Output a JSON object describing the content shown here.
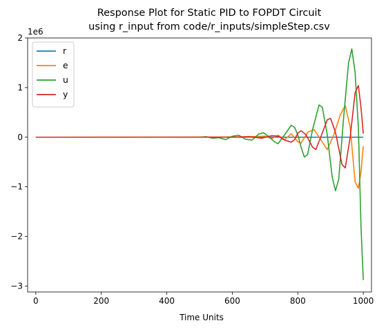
{
  "chart_data": {
    "type": "line",
    "title": "Response Plot for Static PID to FOPDT Circuit",
    "subtitle": "using r_input from code/r_inputs/simpleStep.csv",
    "xlabel": "Time Units",
    "ylabel": "",
    "y_scale_label": "1e6",
    "xlim": [
      -25,
      1025
    ],
    "ylim": [
      -3.12,
      2.0
    ],
    "xticks": [
      0,
      200,
      400,
      600,
      800,
      1000
    ],
    "xtick_labels": [
      "0",
      "200",
      "400",
      "600",
      "800",
      "1000"
    ],
    "yticks": [
      2,
      1,
      0,
      -1,
      -2,
      -3
    ],
    "ytick_labels": [
      "2",
      "1",
      "0",
      "−1",
      "−2",
      "−3"
    ],
    "grid": false,
    "legend_position": "top-left",
    "series": [
      {
        "name": "r",
        "color": "#1f77b4",
        "points": [
          [
            0,
            0
          ],
          [
            1000,
            0
          ]
        ]
      },
      {
        "name": "e",
        "color": "#ff7f0e",
        "points": [
          [
            0,
            0
          ],
          [
            600,
            0.005
          ],
          [
            640,
            0.01
          ],
          [
            680,
            0.015
          ],
          [
            700,
            0.02
          ],
          [
            720,
            -0.03
          ],
          [
            740,
            0.04
          ],
          [
            760,
            -0.05
          ],
          [
            780,
            0.07
          ],
          [
            800,
            -0.09
          ],
          [
            810,
            -0.12
          ],
          [
            830,
            0.1
          ],
          [
            850,
            0.15
          ],
          [
            870,
            -0.05
          ],
          [
            890,
            -0.25
          ],
          [
            910,
            0.05
          ],
          [
            930,
            0.45
          ],
          [
            945,
            0.64
          ],
          [
            960,
            0.2
          ],
          [
            975,
            -0.9
          ],
          [
            985,
            -1.03
          ],
          [
            993,
            -0.7
          ],
          [
            1000,
            -0.18
          ]
        ]
      },
      {
        "name": "u",
        "color": "#2ca02c",
        "points": [
          [
            0,
            0
          ],
          [
            500,
            0
          ],
          [
            520,
            0.01
          ],
          [
            540,
            -0.02
          ],
          [
            560,
            -0.01
          ],
          [
            580,
            -0.05
          ],
          [
            600,
            0.02
          ],
          [
            620,
            0.04
          ],
          [
            640,
            -0.04
          ],
          [
            660,
            -0.06
          ],
          [
            680,
            0.06
          ],
          [
            695,
            0.09
          ],
          [
            710,
            0.02
          ],
          [
            730,
            -0.1
          ],
          [
            740,
            -0.13
          ],
          [
            760,
            0.05
          ],
          [
            780,
            0.24
          ],
          [
            790,
            0.2
          ],
          [
            800,
            0.05
          ],
          [
            810,
            -0.2
          ],
          [
            820,
            -0.4
          ],
          [
            830,
            -0.35
          ],
          [
            845,
            0.15
          ],
          [
            865,
            0.65
          ],
          [
            875,
            0.6
          ],
          [
            890,
            0.05
          ],
          [
            905,
            -0.8
          ],
          [
            915,
            -1.08
          ],
          [
            925,
            -0.85
          ],
          [
            940,
            0.4
          ],
          [
            955,
            1.5
          ],
          [
            965,
            1.78
          ],
          [
            975,
            1.3
          ],
          [
            985,
            0.2
          ],
          [
            993,
            -1.8
          ],
          [
            1000,
            -2.88
          ]
        ]
      },
      {
        "name": "y",
        "color": "#d62728",
        "points": [
          [
            0,
            0
          ],
          [
            600,
            0
          ],
          [
            650,
            0.01
          ],
          [
            690,
            -0.02
          ],
          [
            720,
            0.03
          ],
          [
            740,
            0.02
          ],
          [
            760,
            -0.06
          ],
          [
            780,
            -0.1
          ],
          [
            790,
            -0.05
          ],
          [
            800,
            0.08
          ],
          [
            810,
            0.13
          ],
          [
            825,
            0.05
          ],
          [
            845,
            -0.2
          ],
          [
            855,
            -0.25
          ],
          [
            870,
            0
          ],
          [
            890,
            0.35
          ],
          [
            900,
            0.38
          ],
          [
            915,
            0.1
          ],
          [
            935,
            -0.55
          ],
          [
            945,
            -0.62
          ],
          [
            960,
            0
          ],
          [
            975,
            0.9
          ],
          [
            985,
            1.04
          ],
          [
            993,
            0.6
          ],
          [
            1000,
            0.07
          ]
        ]
      }
    ]
  }
}
